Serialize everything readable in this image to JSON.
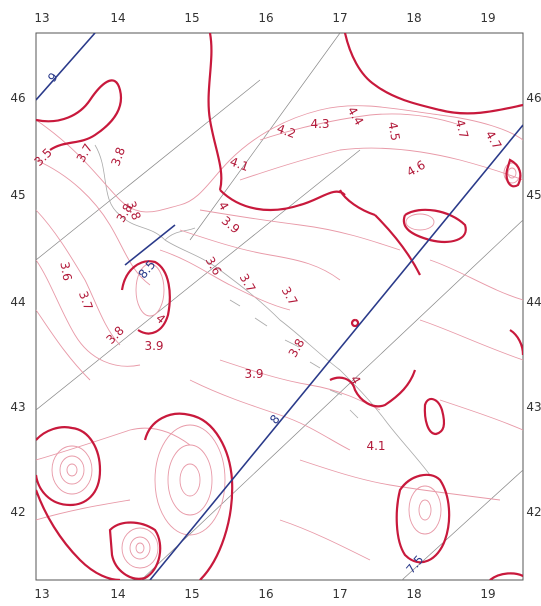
{
  "map": {
    "frame_color": "#555555",
    "contour_color": "#c8193c",
    "contour_thin_color": "#e89aa8",
    "blue_line_color": "#2a3a8a",
    "coast_color": "#bbbbbb",
    "grid_color": "#888888"
  },
  "lon_ticks": [
    "13",
    "14",
    "15",
    "16",
    "17",
    "18",
    "19"
  ],
  "lat_ticks": [
    "46",
    "45",
    "44",
    "43",
    "42"
  ],
  "lat_ticks_right": [
    "46",
    "45",
    "44",
    "43",
    "42"
  ],
  "contour_labels": [
    {
      "text": "3.5"
    },
    {
      "text": "3.7"
    },
    {
      "text": "3.8"
    },
    {
      "text": "3.8"
    },
    {
      "text": "4.1"
    },
    {
      "text": "4.2"
    },
    {
      "text": "4.3"
    },
    {
      "text": "4.4"
    },
    {
      "text": "4.5"
    },
    {
      "text": "4.7"
    },
    {
      "text": "4.7"
    },
    {
      "text": "4.6"
    },
    {
      "text": "4"
    },
    {
      "text": "3.9"
    },
    {
      "text": "3.8"
    },
    {
      "text": "3.6"
    },
    {
      "text": "3.7"
    },
    {
      "text": "3.7"
    },
    {
      "text": "3.6"
    },
    {
      "text": "3.7"
    },
    {
      "text": "3.8"
    },
    {
      "text": "3.9"
    },
    {
      "text": "4"
    },
    {
      "text": "3.8"
    },
    {
      "text": "3.9"
    },
    {
      "text": "4"
    },
    {
      "text": "4.1"
    }
  ],
  "blue_labels": [
    {
      "text": "9"
    },
    {
      "text": "8.5"
    },
    {
      "text": "8"
    },
    {
      "text": "7.5"
    }
  ]
}
